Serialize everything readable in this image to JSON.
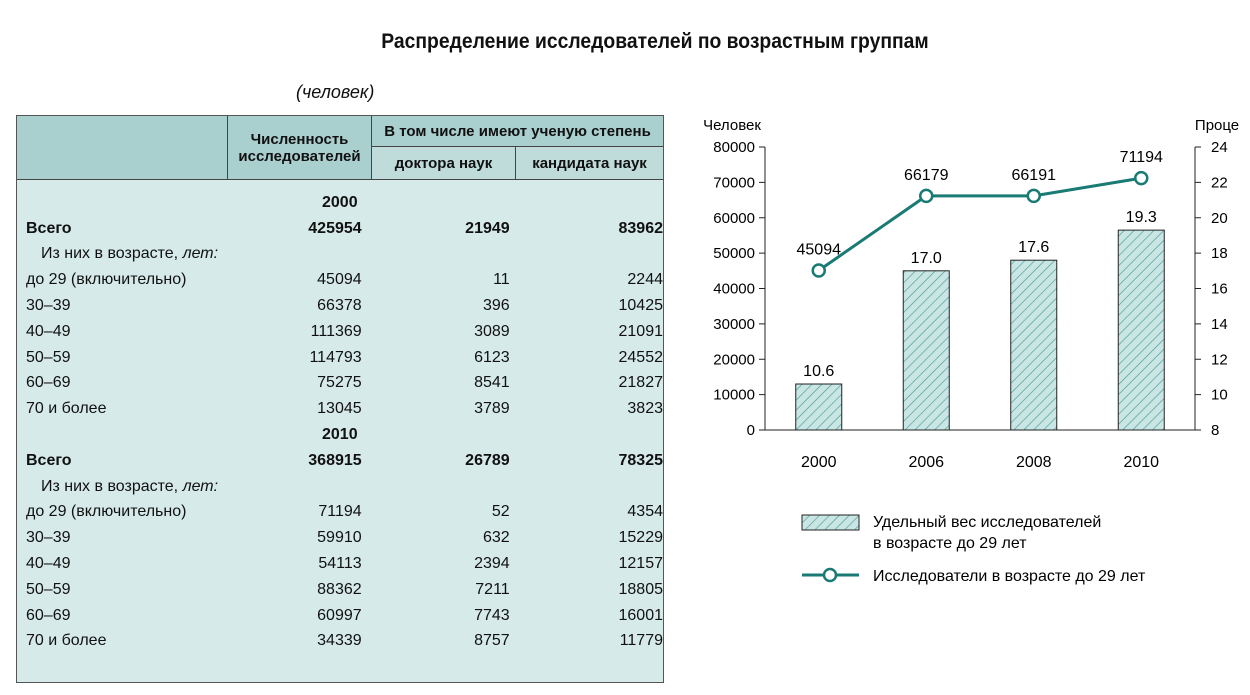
{
  "title": "Распределение исследователей по возрастным группам",
  "unit_note": "(человек)",
  "table": {
    "headers": {
      "col1": [
        "Численность",
        "исследователей"
      ],
      "group": "В том числе имеют ученую степень",
      "sub1": "доктора наук",
      "sub2": "кандидата наук"
    },
    "sections": [
      {
        "year": "2000",
        "total": {
          "label": "Всего",
          "values": [
            "425954",
            "21949",
            "83962"
          ]
        },
        "subheader_prefix": "Из них в возрасте, ",
        "subheader_italic": "лет:",
        "rows": [
          {
            "label": "до 29 (включительно)",
            "values": [
              "45094",
              "11",
              "2244"
            ]
          },
          {
            "label": "30–39",
            "values": [
              "66378",
              "396",
              "10425"
            ]
          },
          {
            "label": "40–49",
            "values": [
              "111369",
              "3089",
              "21091"
            ]
          },
          {
            "label": "50–59",
            "values": [
              "114793",
              "6123",
              "24552"
            ]
          },
          {
            "label": "60–69",
            "values": [
              "75275",
              "8541",
              "21827"
            ]
          },
          {
            "label": "70 и более",
            "values": [
              "13045",
              "3789",
              "3823"
            ]
          }
        ]
      },
      {
        "year": "2010",
        "total": {
          "label": "Всего",
          "values": [
            "368915",
            "26789",
            "78325"
          ]
        },
        "subheader_prefix": "Из них в возрасте, ",
        "subheader_italic": "лет:",
        "rows": [
          {
            "label": "до 29 (включительно)",
            "values": [
              "71194",
              "52",
              "4354"
            ]
          },
          {
            "label": "30–39",
            "values": [
              "59910",
              "632",
              "15229"
            ]
          },
          {
            "label": "40–49",
            "values": [
              "54113",
              "2394",
              "12157"
            ]
          },
          {
            "label": "50–59",
            "values": [
              "88362",
              "7211",
              "18805"
            ]
          },
          {
            "label": "60–69",
            "values": [
              "60997",
              "7743",
              "16001"
            ]
          },
          {
            "label": "70 и более",
            "values": [
              "34339",
              "8757",
              "11779"
            ]
          }
        ]
      }
    ]
  },
  "chart_data": {
    "type": "bar+line",
    "categories": [
      "2000",
      "2006",
      "2008",
      "2010"
    ],
    "ylabel_left": "Человек",
    "ylabel_right": "Проценты",
    "ylim_left": [
      0,
      80000
    ],
    "yticks_left": [
      0,
      10000,
      20000,
      30000,
      40000,
      50000,
      60000,
      70000,
      80000
    ],
    "ylim_right": [
      8,
      24
    ],
    "yticks_right": [
      8,
      10,
      12,
      14,
      16,
      18,
      20,
      22,
      24
    ],
    "series": [
      {
        "name": "Удельный вес исследователей в возрасте до 29 лет",
        "kind": "bar",
        "axis": "right",
        "values": [
          10.6,
          17.0,
          17.6,
          19.3
        ],
        "labels": [
          "10.6",
          "17.0",
          "17.6",
          "19.3"
        ]
      },
      {
        "name": "Исследователи в возрасте до 29 лет",
        "kind": "line",
        "axis": "left",
        "values": [
          45094,
          66179,
          66191,
          71194
        ],
        "labels": [
          "45094",
          "66179",
          "66191",
          "71194"
        ]
      }
    ],
    "legend": {
      "bar_lines": [
        "Удельный вес исследователей",
        "в возрасте до 29 лет"
      ],
      "line": "Исследователи в возрасте до 29 лет",
      "placement": "bottom"
    },
    "colors": {
      "bar_fill": "#c9e6e4",
      "hatch": "#4a9a96",
      "line": "#1a7a74",
      "marker_fill": "#ffffff"
    }
  }
}
